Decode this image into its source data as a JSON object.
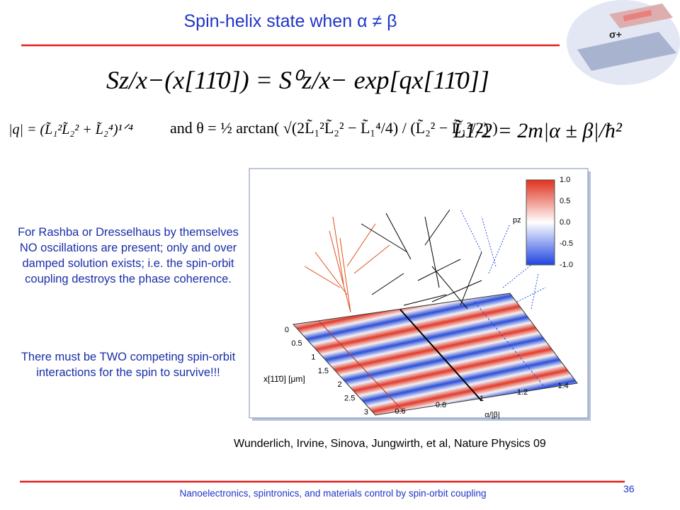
{
  "title": "Spin-helix state when α ≠ β",
  "equations": {
    "main": "Sz/x−(x[11̄0]) = S⁰z/x− exp[qx[11̄0]]",
    "q": "|q| = (L̃₁²L̃₂² + L̃₂⁴)¹ᐟ⁴",
    "theta": "and θ = ½ arctan( √(2L̃₁²L̃₂² − L̃₁⁴/4) / (L̃₂² − L̃₁²/2) )",
    "L": "L̃1/2 = 2m|α ± β|/ħ²"
  },
  "body": [
    "For Rashba or Dresselhaus by themselves NO oscillations are present; only and over damped solution exists; i.e. the spin-orbit coupling destroys the phase coherence.",
    "There must be TWO competing spin-orbit interactions for the spin to survive!!!"
  ],
  "figure": {
    "colorbar_label": "pz",
    "colorbar_ticks": [
      "1.0",
      "0.5",
      "0.0",
      "-0.5",
      "-1.0"
    ],
    "y_ticks": [
      "0",
      "0.5",
      "1",
      "1.5",
      "2",
      "2.5",
      "3"
    ],
    "y_label": "x[11̄0] [μm]",
    "x_ticks": [
      "0.6",
      "0.8",
      "1",
      "1.2",
      "1.4"
    ],
    "x_label": "α/|β|"
  },
  "citation": "Wunderlich, Irvine, Sinova, Jungwirth, et al, Nature Physics 09",
  "footer": "Nanoelectronics, spintronics, and materials control by spin-orbit coupling",
  "page_number": "36"
}
